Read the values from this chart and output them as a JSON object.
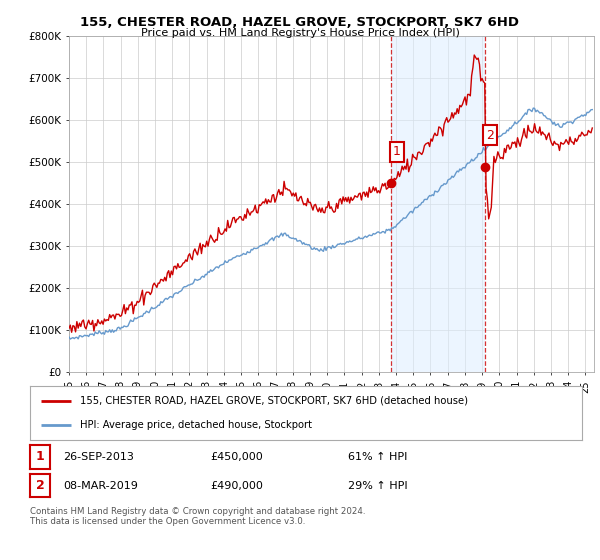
{
  "title": "155, CHESTER ROAD, HAZEL GROVE, STOCKPORT, SK7 6HD",
  "subtitle": "Price paid vs. HM Land Registry's House Price Index (HPI)",
  "ylabel_ticks": [
    "£0",
    "£100K",
    "£200K",
    "£300K",
    "£400K",
    "£500K",
    "£600K",
    "£700K",
    "£800K"
  ],
  "ytick_values": [
    0,
    100000,
    200000,
    300000,
    400000,
    500000,
    600000,
    700000,
    800000
  ],
  "ylim": [
    0,
    800000
  ],
  "xlim_start": 1995.25,
  "xlim_end": 2025.5,
  "red_color": "#cc0000",
  "blue_color": "#6699cc",
  "shade_color": "#ddeeff",
  "dashed_color": "#cc0000",
  "shaded_region1_start": 2013.73,
  "shaded_region1_end": 2019.18,
  "marker1_x": 2013.73,
  "marker1_y": 450000,
  "marker2_x": 2019.18,
  "marker2_y": 490000,
  "legend_line1": "155, CHESTER ROAD, HAZEL GROVE, STOCKPORT, SK7 6HD (detached house)",
  "legend_line2": "HPI: Average price, detached house, Stockport",
  "annotation1_num": "1",
  "annotation1_date": "26-SEP-2013",
  "annotation1_price": "£450,000",
  "annotation1_hpi": "61% ↑ HPI",
  "annotation2_num": "2",
  "annotation2_date": "08-MAR-2019",
  "annotation2_price": "£490,000",
  "annotation2_hpi": "29% ↑ HPI",
  "footer": "Contains HM Land Registry data © Crown copyright and database right 2024.\nThis data is licensed under the Open Government Licence v3.0.",
  "background_color": "#ffffff",
  "grid_color": "#cccccc"
}
